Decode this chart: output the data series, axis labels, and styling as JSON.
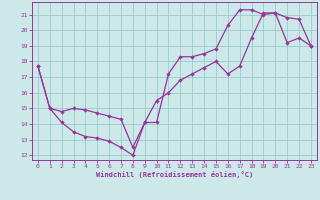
{
  "xlabel": "Windchill (Refroidissement éolien,°C)",
  "line_color": "#993399",
  "bg_color": "#cce8e8",
  "grid_color": "#99cccc",
  "xlim": [
    -0.5,
    23.5
  ],
  "ylim": [
    11.7,
    21.8
  ],
  "xticks": [
    0,
    1,
    2,
    3,
    4,
    5,
    6,
    7,
    8,
    9,
    10,
    11,
    12,
    13,
    14,
    15,
    16,
    17,
    18,
    19,
    20,
    21,
    22,
    23
  ],
  "yticks": [
    12,
    13,
    14,
    15,
    16,
    17,
    18,
    19,
    20,
    21
  ],
  "line1_x": [
    0,
    1,
    2,
    3,
    4,
    5,
    6,
    7,
    8,
    9,
    10,
    11,
    12,
    13,
    14,
    15,
    16,
    17,
    18,
    19,
    20,
    21,
    22,
    23
  ],
  "line1_y": [
    17.7,
    15.0,
    14.1,
    13.5,
    13.2,
    13.1,
    12.9,
    12.5,
    12.0,
    14.1,
    14.1,
    17.2,
    18.3,
    18.3,
    18.5,
    18.8,
    20.3,
    21.3,
    21.3,
    21.0,
    21.1,
    20.8,
    20.7,
    19.0
  ],
  "line2_x": [
    0,
    1,
    2,
    3,
    4,
    5,
    6,
    7,
    8,
    9,
    10,
    11,
    12,
    13,
    14,
    15,
    16,
    17,
    18,
    19,
    20,
    21,
    22,
    23
  ],
  "line2_y": [
    17.7,
    15.0,
    14.8,
    15.0,
    14.9,
    14.7,
    14.5,
    14.3,
    12.5,
    14.1,
    15.5,
    16.0,
    16.8,
    17.2,
    17.6,
    18.0,
    17.2,
    17.7,
    19.5,
    21.1,
    21.1,
    19.2,
    19.5,
    19.0
  ]
}
